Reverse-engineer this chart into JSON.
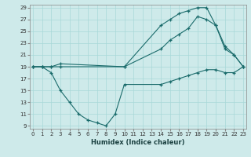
{
  "xlabel": "Humidex (Indice chaleur)",
  "xlim": [
    0,
    23
  ],
  "ylim": [
    9,
    29
  ],
  "yticks": [
    9,
    11,
    13,
    15,
    17,
    19,
    21,
    23,
    25,
    27,
    29
  ],
  "xticks": [
    0,
    1,
    2,
    3,
    4,
    5,
    6,
    7,
    8,
    9,
    10,
    11,
    12,
    13,
    14,
    15,
    16,
    17,
    18,
    19,
    20,
    21,
    22,
    23
  ],
  "bg_color": "#ceeaea",
  "line_color": "#1a6b6b",
  "series": [
    {
      "x": [
        0,
        1,
        2,
        3,
        10,
        14,
        15,
        16,
        17,
        18,
        19,
        20,
        21,
        22,
        23
      ],
      "y": [
        19,
        19,
        19,
        19,
        19,
        26,
        27,
        28,
        28.5,
        29,
        29,
        26,
        22,
        21,
        19
      ]
    },
    {
      "x": [
        0,
        1,
        2,
        3,
        10,
        14,
        15,
        16,
        17,
        18,
        19,
        20,
        21,
        22,
        23
      ],
      "y": [
        19,
        19,
        19,
        19.5,
        19,
        22,
        23.5,
        24.5,
        25.5,
        27.5,
        27,
        26,
        22.5,
        21,
        19
      ]
    },
    {
      "x": [
        0,
        1,
        2,
        3,
        4,
        5,
        6,
        7,
        8,
        9,
        10,
        14,
        15,
        16,
        17,
        18,
        19,
        20,
        21,
        22,
        23
      ],
      "y": [
        19,
        19,
        18,
        15,
        13,
        11,
        10,
        9.5,
        9,
        11,
        16,
        16,
        16.5,
        17,
        17.5,
        18,
        18.5,
        18.5,
        18,
        18,
        19
      ]
    }
  ]
}
